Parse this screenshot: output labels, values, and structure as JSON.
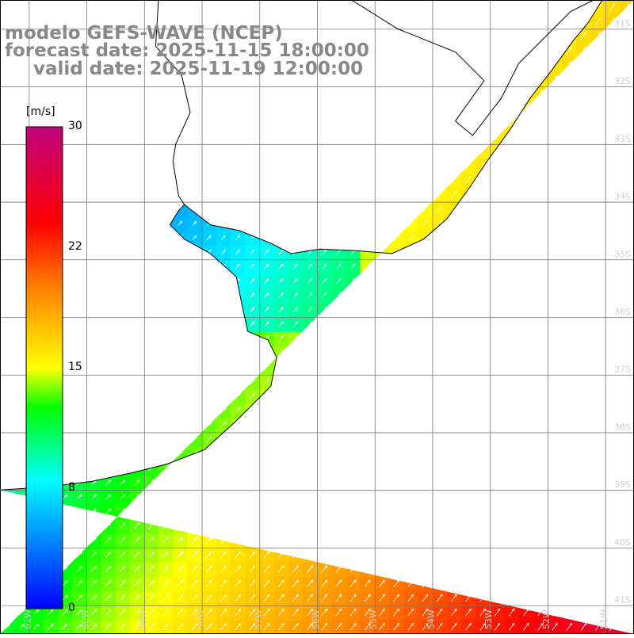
{
  "title": {
    "line1": "modelo GEFS-WAVE (NCEP)",
    "line2": "forecast date: 2025-11-15 18:00:00",
    "line3": "valid date: 2025-11-19 12:00:00"
  },
  "colorbar": {
    "unit": "[m/s]",
    "min": 0,
    "max": 30,
    "ticks": [
      "30",
      "22",
      "15",
      "8",
      "0"
    ],
    "tick_values": [
      30,
      22,
      15,
      8,
      0
    ],
    "stops": [
      "#0000ff",
      "#00ffff",
      "#00ff00",
      "#ffff00",
      "#ff8000",
      "#ff0000",
      "#c0007f"
    ],
    "stop_values": [
      0,
      8,
      12.5,
      15,
      20,
      24,
      30
    ]
  },
  "map": {
    "lon_range": [
      -61.5,
      -50.5
    ],
    "lat_range": [
      -41.5,
      -30.5
    ],
    "lon_labels": [
      "61W",
      "60W",
      "59W",
      "58W",
      "57W",
      "56W",
      "55W",
      "54W",
      "53W",
      "52W",
      "51W"
    ],
    "lon_values": [
      -61,
      -60,
      -59,
      -58,
      -57,
      -56,
      -55,
      -54,
      -53,
      -52,
      -51
    ],
    "lat_labels": [
      "31S",
      "32S",
      "33S",
      "34S",
      "35S",
      "36S",
      "37S",
      "38S",
      "39S",
      "40S",
      "41S"
    ],
    "lat_values": [
      -31,
      -32,
      -33,
      -34,
      -35,
      -36,
      -37,
      -38,
      -39,
      -40,
      -41
    ],
    "grid": true,
    "field": "wind speed (m/s) with wind direction arrows",
    "land_color": "#ffffff",
    "coast_color": "#000000"
  }
}
